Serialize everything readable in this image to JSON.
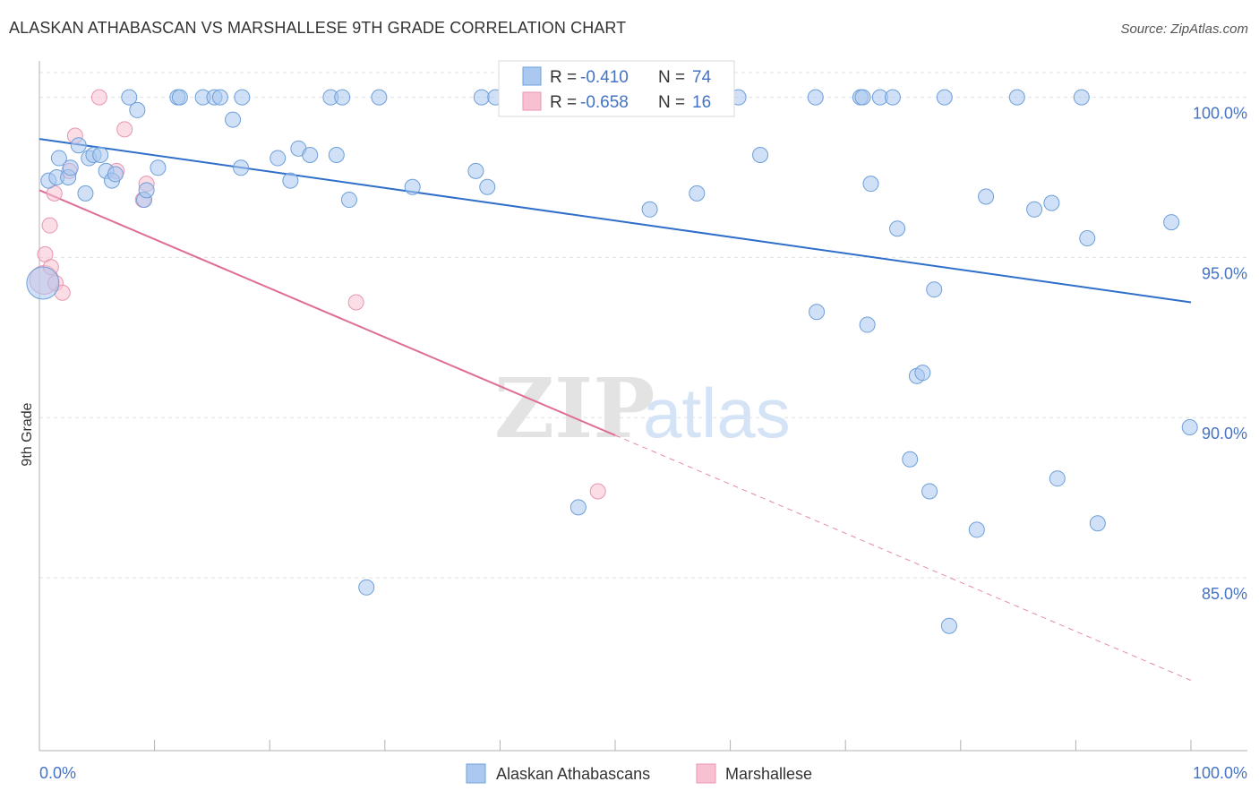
{
  "header": {
    "title": "ALASKAN ATHABASCAN VS MARSHALLESE 9TH GRADE CORRELATION CHART",
    "source": "Source: ZipAtlas.com"
  },
  "watermark": {
    "zip": "ZIP",
    "atlas": "atlas"
  },
  "legend_top": {
    "rows": [
      {
        "r_label": "R =",
        "r_value": "-0.410",
        "n_label": "N =",
        "n_value": "74"
      },
      {
        "r_label": "R =",
        "r_value": "-0.658",
        "n_label": "N =",
        "n_value": "16"
      }
    ]
  },
  "legend_bottom": {
    "items": [
      "Alaskan Athabascans",
      "Marshallese"
    ]
  },
  "colors": {
    "blue_fill": "#aac8f0",
    "blue_stroke": "#6e9fd8",
    "blue_line": "#2f6fca",
    "pink_fill": "#f7c1d2",
    "pink_stroke": "#e896b2",
    "pink_line": "#e06d96",
    "tick_text": "#4472c4",
    "grid": "#dde1e6"
  },
  "chart_data": {
    "type": "scatter",
    "title": "ALASKAN ATHABASCAN VS MARSHALLESE 9TH GRADE CORRELATION CHART",
    "xlabel": "",
    "ylabel": "9th Grade",
    "xlim": [
      0,
      100
    ],
    "ylim": [
      80.5,
      100.8
    ],
    "x_tick_labels": [
      "0.0%",
      "100.0%"
    ],
    "y_ticks": [
      85,
      90,
      95,
      100
    ],
    "y_tick_labels": [
      "85.0%",
      "90.0%",
      "95.0%",
      "100.0%"
    ],
    "grid": true,
    "legend_position": "top-center",
    "series": [
      {
        "name": "Alaskan Athabascans",
        "color": "#aac8f0",
        "r": -0.41,
        "n": 74,
        "trend": {
          "x": [
            0,
            100
          ],
          "y": [
            98.7,
            93.6
          ]
        },
        "points": [
          [
            0.3,
            94.2
          ],
          [
            0.8,
            97.4
          ],
          [
            1.5,
            97.5
          ],
          [
            1.7,
            98.1
          ],
          [
            2.5,
            97.5
          ],
          [
            2.7,
            97.8
          ],
          [
            3.4,
            98.5
          ],
          [
            4.0,
            97.0
          ],
          [
            4.3,
            98.1
          ],
          [
            4.7,
            98.2
          ],
          [
            5.3,
            98.2
          ],
          [
            5.8,
            97.7
          ],
          [
            6.3,
            97.4
          ],
          [
            6.6,
            97.6
          ],
          [
            7.8,
            100.0
          ],
          [
            8.5,
            99.6
          ],
          [
            9.1,
            96.8
          ],
          [
            9.3,
            97.1
          ],
          [
            10.3,
            97.8
          ],
          [
            12.0,
            100.0
          ],
          [
            12.2,
            100.0
          ],
          [
            14.2,
            100.0
          ],
          [
            15.2,
            100.0
          ],
          [
            15.7,
            100.0
          ],
          [
            16.8,
            99.3
          ],
          [
            17.5,
            97.8
          ],
          [
            17.6,
            100.0
          ],
          [
            20.7,
            98.1
          ],
          [
            21.8,
            97.4
          ],
          [
            22.5,
            98.4
          ],
          [
            23.5,
            98.2
          ],
          [
            25.3,
            100.0
          ],
          [
            25.8,
            98.2
          ],
          [
            26.3,
            100.0
          ],
          [
            26.9,
            96.8
          ],
          [
            28.4,
            84.7
          ],
          [
            29.5,
            100.0
          ],
          [
            32.4,
            97.2
          ],
          [
            37.9,
            97.7
          ],
          [
            38.4,
            100.0
          ],
          [
            38.9,
            97.2
          ],
          [
            39.6,
            100.0
          ],
          [
            46.8,
            87.2
          ],
          [
            53.0,
            96.5
          ],
          [
            57.1,
            97.0
          ],
          [
            60.7,
            100.0
          ],
          [
            62.6,
            98.2
          ],
          [
            67.4,
            100.0
          ],
          [
            67.5,
            93.3
          ],
          [
            71.9,
            92.9
          ],
          [
            72.2,
            97.3
          ],
          [
            71.3,
            100.0
          ],
          [
            71.5,
            100.0
          ],
          [
            73.0,
            100.0
          ],
          [
            74.1,
            100.0
          ],
          [
            74.5,
            95.9
          ],
          [
            75.6,
            88.7
          ],
          [
            76.2,
            91.3
          ],
          [
            76.7,
            91.4
          ],
          [
            77.3,
            87.7
          ],
          [
            77.7,
            94.0
          ],
          [
            78.6,
            100.0
          ],
          [
            79.0,
            83.5
          ],
          [
            81.4,
            86.5
          ],
          [
            82.2,
            96.9
          ],
          [
            84.9,
            100.0
          ],
          [
            86.4,
            96.5
          ],
          [
            87.9,
            96.7
          ],
          [
            88.4,
            88.1
          ],
          [
            90.5,
            100.0
          ],
          [
            91.0,
            95.6
          ],
          [
            91.9,
            86.7
          ],
          [
            98.3,
            96.1
          ],
          [
            99.9,
            89.7
          ]
        ]
      },
      {
        "name": "Marshallese",
        "color": "#f7c1d2",
        "r": -0.658,
        "n": 16,
        "trend": {
          "x": [
            0,
            100
          ],
          "y": [
            97.1,
            81.8
          ]
        },
        "trend_solid_until_x": 50,
        "points": [
          [
            0.4,
            94.3
          ],
          [
            0.5,
            95.1
          ],
          [
            0.9,
            96.0
          ],
          [
            1.0,
            94.7
          ],
          [
            1.3,
            97.0
          ],
          [
            1.4,
            94.2
          ],
          [
            2.0,
            93.9
          ],
          [
            2.6,
            97.7
          ],
          [
            3.1,
            98.8
          ],
          [
            5.2,
            100.0
          ],
          [
            6.7,
            97.7
          ],
          [
            7.4,
            99.0
          ],
          [
            9.0,
            96.8
          ],
          [
            9.3,
            97.3
          ],
          [
            27.5,
            93.6
          ],
          [
            48.5,
            87.7
          ]
        ]
      }
    ]
  }
}
